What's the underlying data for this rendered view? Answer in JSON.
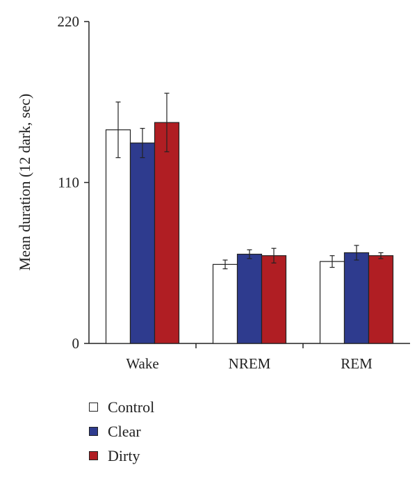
{
  "chart_data": {
    "type": "bar",
    "categories": [
      "Wake",
      "NREM",
      "REM"
    ],
    "series": [
      {
        "name": "Control",
        "color": "#ffffff",
        "values": [
          146,
          54,
          56
        ],
        "errors": [
          19,
          3,
          4
        ]
      },
      {
        "name": "Clear",
        "color": "#2e3b8e",
        "values": [
          137,
          61,
          62
        ],
        "errors": [
          10,
          3,
          5
        ]
      },
      {
        "name": "Dirty",
        "color": "#b01e23",
        "values": [
          151,
          60,
          60
        ],
        "errors": [
          20,
          5,
          2
        ]
      }
    ],
    "ylabel": "Mean duration (12 dark, sec)",
    "xlabel": "",
    "ylim": [
      0,
      220
    ],
    "yticks": [
      "0",
      "110",
      "220"
    ],
    "grid": false,
    "legend_position": "bottom-left"
  }
}
